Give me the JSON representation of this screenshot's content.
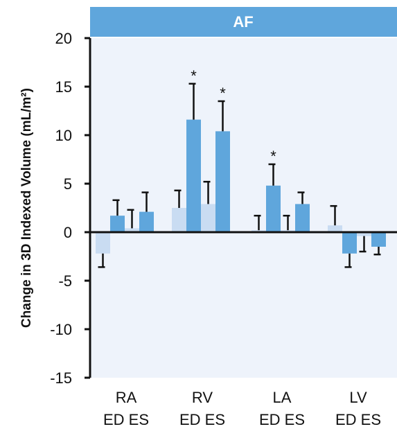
{
  "chart_data": {
    "type": "bar",
    "title": "AF",
    "ylabel": "Change in 3D Indexed Volume (mL/m²)",
    "xlabel": "",
    "ylim": [
      -15,
      20
    ],
    "yticks": [
      20,
      15,
      10,
      5,
      0,
      -5,
      -10,
      -15
    ],
    "ytick_labels": [
      "20",
      "15",
      "10",
      "5",
      "0",
      "-5",
      "-10",
      "-15"
    ],
    "groups": [
      "RA",
      "RV",
      "LA",
      "LV"
    ],
    "subcategories": [
      "ED",
      "ES"
    ],
    "colors": {
      "banner": "#5FA6DC",
      "plot_bg": "#EEF3FB",
      "light_bar": "#C9DCF2",
      "dark_bar": "#5FA6DC",
      "error": "#111111"
    },
    "bars": [
      {
        "group": "RA",
        "phase": "ED",
        "shade": "light",
        "value": -2.2,
        "error": 1.4,
        "significant": false
      },
      {
        "group": "RA",
        "phase": "ED",
        "shade": "dark",
        "value": 1.7,
        "error": 1.6,
        "significant": false
      },
      {
        "group": "RA",
        "phase": "ES",
        "shade": "light",
        "value": 0.4,
        "error": 1.9,
        "significant": false
      },
      {
        "group": "RA",
        "phase": "ES",
        "shade": "dark",
        "value": 2.1,
        "error": 2.0,
        "significant": false
      },
      {
        "group": "RV",
        "phase": "ED",
        "shade": "light",
        "value": 2.5,
        "error": 1.8,
        "significant": false
      },
      {
        "group": "RV",
        "phase": "ED",
        "shade": "dark",
        "value": 11.6,
        "error": 3.7,
        "significant": true
      },
      {
        "group": "RV",
        "phase": "ES",
        "shade": "light",
        "value": 2.9,
        "error": 2.3,
        "significant": false
      },
      {
        "group": "RV",
        "phase": "ES",
        "shade": "dark",
        "value": 10.4,
        "error": 3.1,
        "significant": true
      },
      {
        "group": "LA",
        "phase": "ED",
        "shade": "light",
        "value": 0.2,
        "error": 1.5,
        "significant": false
      },
      {
        "group": "LA",
        "phase": "ED",
        "shade": "dark",
        "value": 4.8,
        "error": 2.2,
        "significant": true
      },
      {
        "group": "LA",
        "phase": "ES",
        "shade": "light",
        "value": 0.2,
        "error": 1.5,
        "significant": false
      },
      {
        "group": "LA",
        "phase": "ES",
        "shade": "dark",
        "value": 2.9,
        "error": 1.2,
        "significant": false
      },
      {
        "group": "LV",
        "phase": "ED",
        "shade": "light",
        "value": 0.7,
        "error": 2.0,
        "significant": false
      },
      {
        "group": "LV",
        "phase": "ED",
        "shade": "dark",
        "value": -2.2,
        "error": 1.4,
        "significant": false
      },
      {
        "group": "LV",
        "phase": "ES",
        "shade": "light",
        "value": -0.4,
        "error": 1.6,
        "significant": false
      },
      {
        "group": "LV",
        "phase": "ES",
        "shade": "dark",
        "value": -1.5,
        "error": 0.8,
        "significant": false
      }
    ],
    "significance_marker": "*",
    "legend": "none",
    "grid": false
  }
}
